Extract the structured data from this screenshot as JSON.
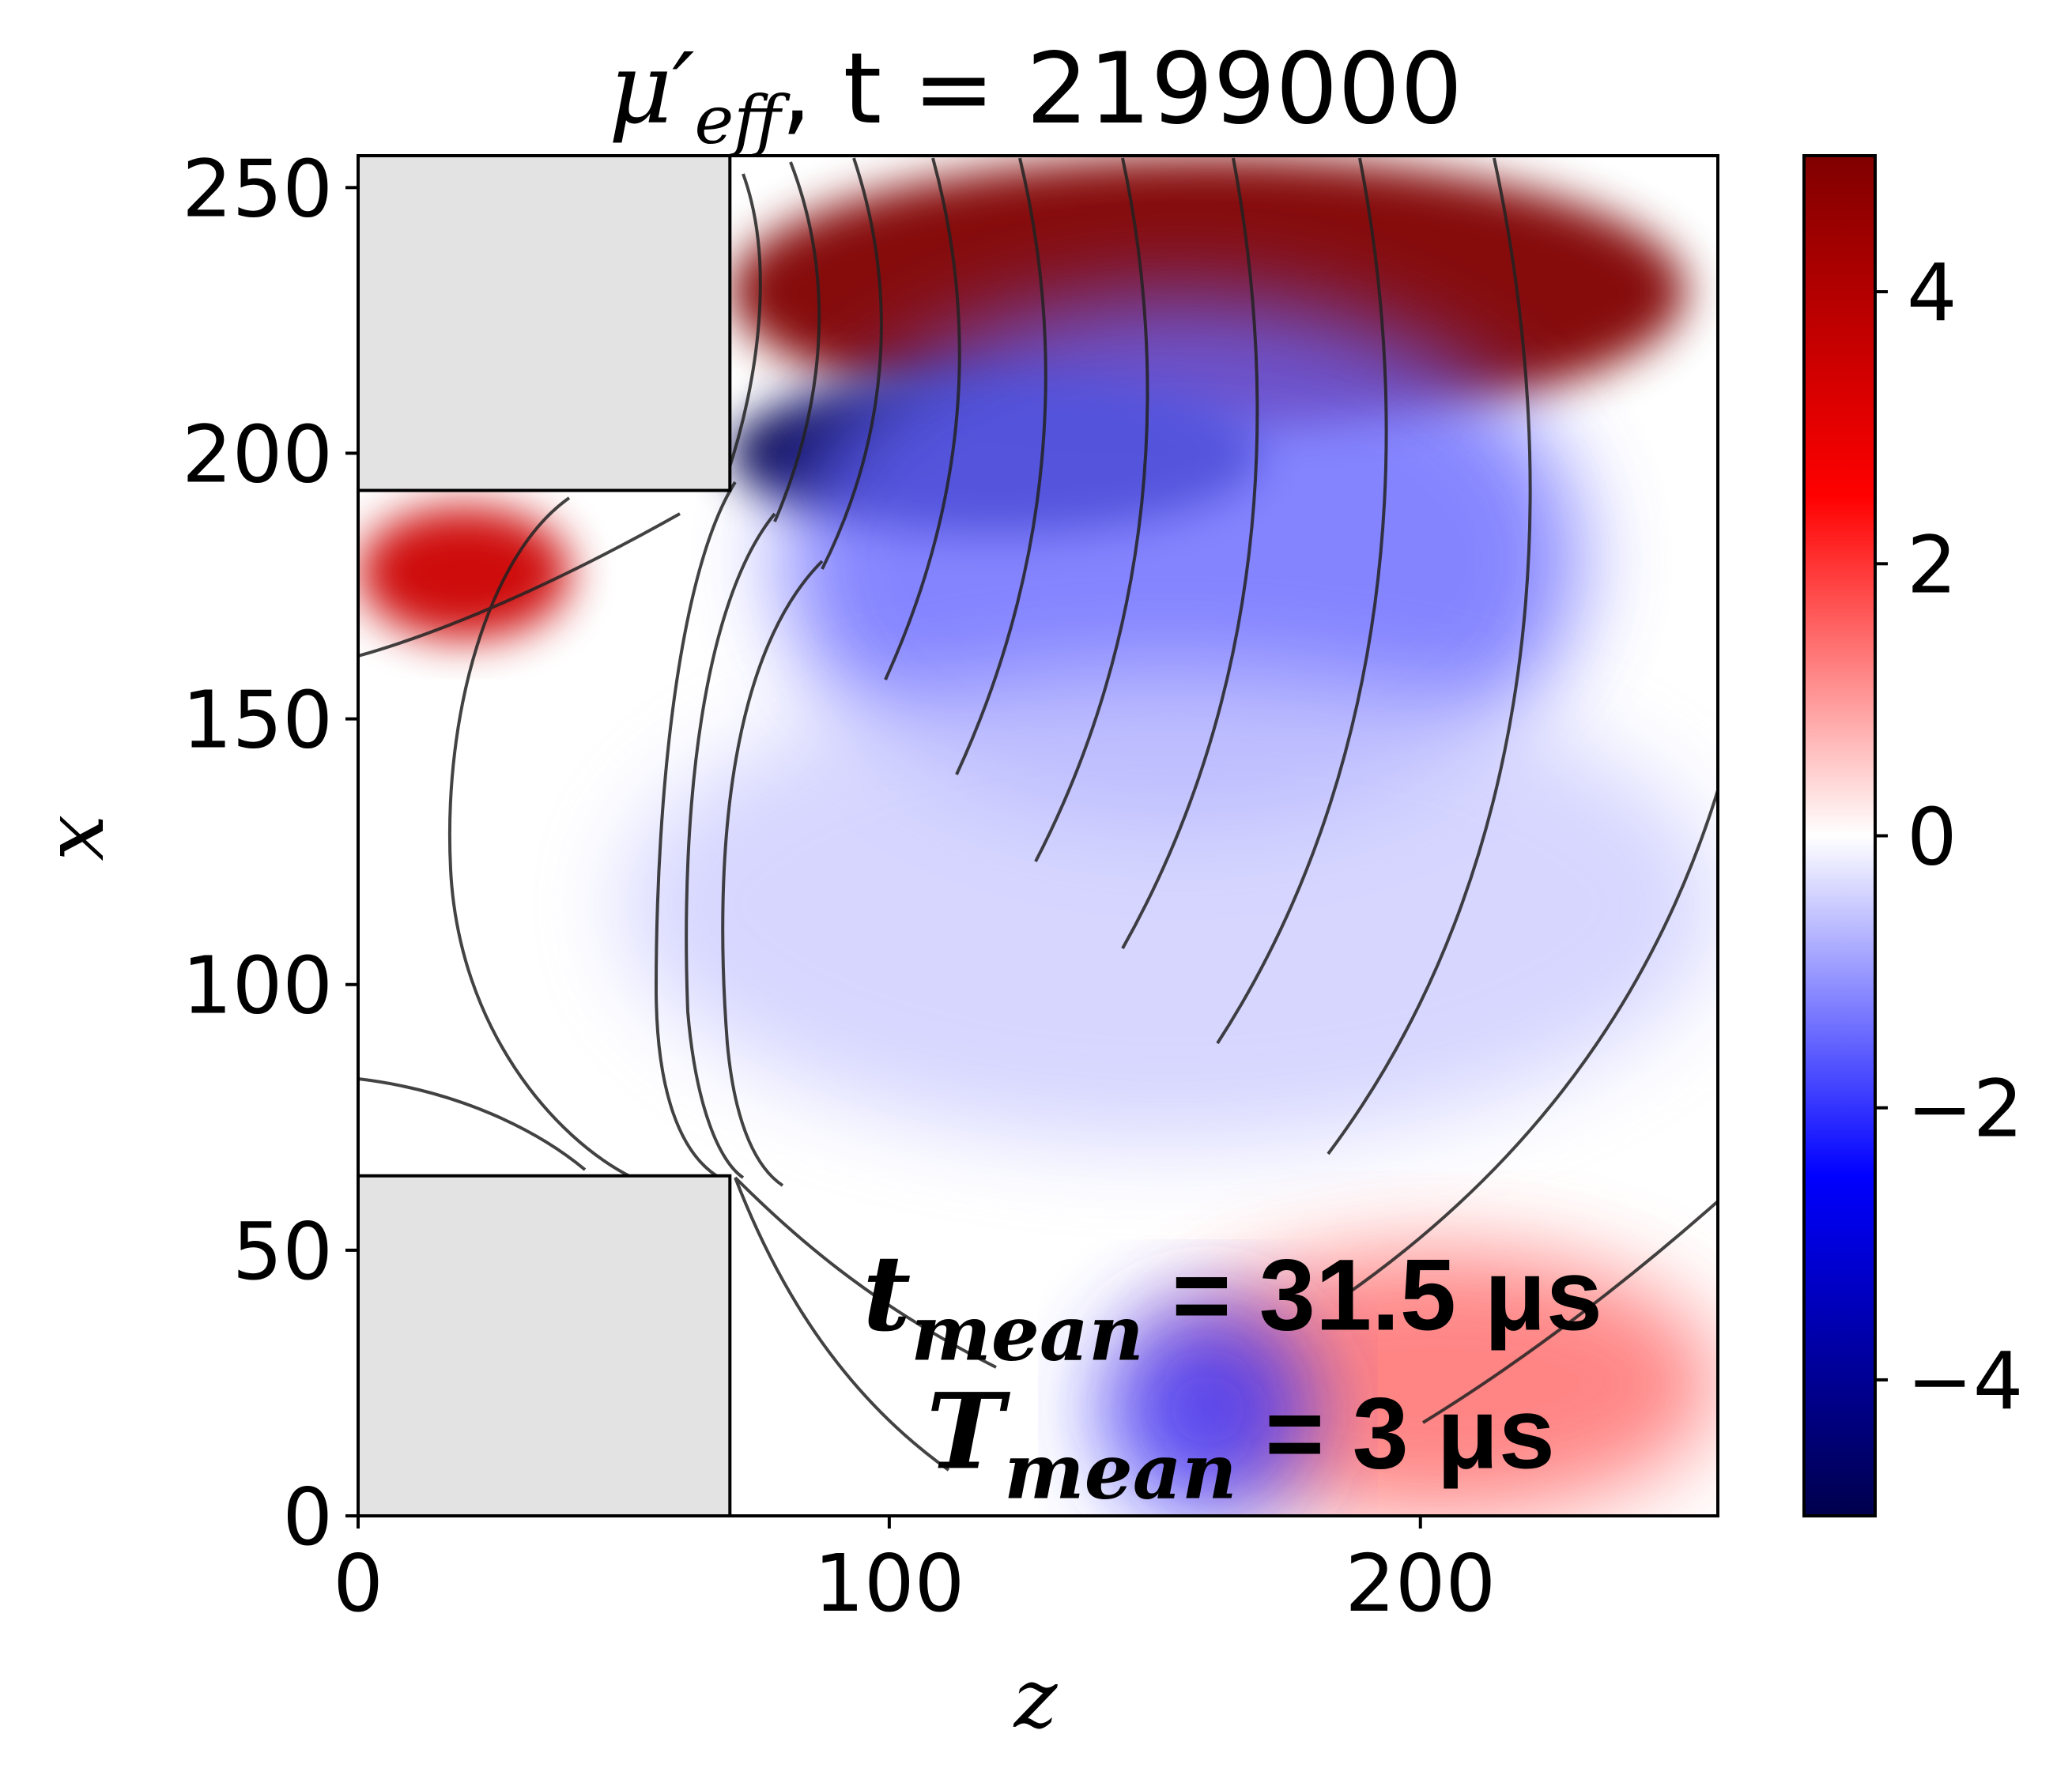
{
  "chart_data": {
    "type": "heatmap",
    "title": {
      "symbol": "μ′",
      "subscript": "eff",
      "time_label": ", t = 2199000"
    },
    "xlabel": "z",
    "ylabel": "x",
    "xlim": [
      0,
      256
    ],
    "ylim": [
      0,
      256
    ],
    "xticks": [
      {
        "value": 0,
        "label": "0"
      },
      {
        "value": 100,
        "label": "100"
      },
      {
        "value": 200,
        "label": "200"
      }
    ],
    "yticks": [
      {
        "value": 0,
        "label": "0"
      },
      {
        "value": 50,
        "label": "50"
      },
      {
        "value": 100,
        "label": "100"
      },
      {
        "value": 150,
        "label": "150"
      },
      {
        "value": 200,
        "label": "200"
      },
      {
        "value": 250,
        "label": "250"
      }
    ],
    "colorbar": {
      "range": [
        -5,
        5
      ],
      "colormap": "seismic",
      "colors": {
        "low": "#00004c",
        "mid": "#ffffff",
        "high": "#800000"
      },
      "ticks": [
        {
          "value": 4,
          "label": "4"
        },
        {
          "value": 2,
          "label": "2"
        },
        {
          "value": 0,
          "label": "0"
        },
        {
          "value": -2,
          "label": "−2"
        },
        {
          "value": -4,
          "label": "−4"
        }
      ]
    },
    "obstacles": [
      {
        "z": [
          0,
          70
        ],
        "x": [
          193,
          256
        ],
        "color": "#e3e3e3"
      },
      {
        "z": [
          0,
          70
        ],
        "x": [
          0,
          64
        ],
        "color": "#e3e3e3"
      }
    ],
    "regions": [
      {
        "kind": "positive",
        "value": 5,
        "z": [
          70,
          250
        ],
        "x": [
          205,
          256
        ]
      },
      {
        "kind": "negative",
        "value": -5,
        "z": [
          70,
          170
        ],
        "x": [
          185,
          215
        ]
      },
      {
        "kind": "negative",
        "value": -1.5,
        "z": [
          80,
          230
        ],
        "x": [
          130,
          230
        ]
      },
      {
        "kind": "negative",
        "value": -0.5,
        "z": [
          50,
          256
        ],
        "x": [
          70,
          160
        ]
      },
      {
        "kind": "positive",
        "value": 3.5,
        "z": [
          0,
          40
        ],
        "x": [
          165,
          190
        ]
      },
      {
        "kind": "positive",
        "value": 1.5,
        "z": [
          150,
          256
        ],
        "x": [
          0,
          50
        ]
      },
      {
        "kind": "negative",
        "value": -2,
        "z": [
          140,
          180
        ],
        "x": [
          0,
          40
        ]
      }
    ],
    "annotations": [
      {
        "main": "t",
        "sub": "mean",
        "value": " = 31.5 μs",
        "z": 95,
        "x": 38
      },
      {
        "main": "T",
        "sub": "mean",
        "value": " = 3 μs",
        "z": 107,
        "x": 12
      }
    ]
  }
}
